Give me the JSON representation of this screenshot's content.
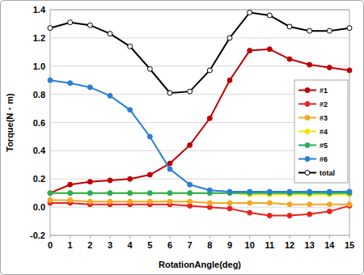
{
  "chart_data": {
    "type": "line",
    "x_label": "RotationAngle(deg)",
    "y_label": "Torque(N・m)",
    "x": [
      0,
      1,
      2,
      3,
      4,
      5,
      6,
      7,
      8,
      9,
      10,
      11,
      12,
      13,
      14,
      15
    ],
    "xlim": [
      0,
      15
    ],
    "xticks": [
      0,
      1,
      2,
      3,
      4,
      5,
      6,
      7,
      8,
      9,
      10,
      11,
      12,
      13,
      14,
      15
    ],
    "ylim": [
      -0.2,
      1.4
    ],
    "yticks": [
      -0.2,
      {
        "value": 0,
        "label": "0.0"
      },
      0.2,
      0.4,
      0.6,
      0.8,
      {
        "value": 1,
        "label": "1.0"
      },
      1.2,
      1.4
    ],
    "grid": true,
    "legend": "right",
    "marker": "circle",
    "series": [
      {
        "name": "#1",
        "color": "#c00000",
        "values": [
          0.1,
          0.16,
          0.18,
          0.19,
          0.2,
          0.23,
          0.31,
          0.44,
          0.63,
          0.9,
          1.11,
          1.12,
          1.05,
          1.01,
          0.99,
          0.97
        ]
      },
      {
        "name": "#2",
        "color": "#e8231f",
        "values": [
          0.03,
          0.03,
          0.02,
          0.02,
          0.02,
          0.02,
          0.02,
          0.01,
          0.0,
          -0.01,
          -0.04,
          -0.06,
          -0.06,
          -0.05,
          -0.03,
          0.01
        ]
      },
      {
        "name": "#3",
        "color": "#f5a623",
        "values": [
          0.05,
          0.05,
          0.04,
          0.04,
          0.04,
          0.04,
          0.04,
          0.04,
          0.03,
          0.03,
          0.03,
          0.03,
          0.02,
          0.02,
          0.02,
          0.02
        ]
      },
      {
        "name": "#4",
        "color": "#f2e600",
        "values": [
          0.1,
          0.1,
          0.1,
          0.1,
          0.1,
          0.1,
          0.1,
          0.1,
          0.1,
          0.1,
          0.09,
          0.09,
          0.09,
          0.09,
          0.09,
          0.09
        ]
      },
      {
        "name": "#5",
        "color": "#27ae60",
        "values": [
          0.1,
          0.1,
          0.1,
          0.1,
          0.1,
          0.1,
          0.1,
          0.1,
          0.1,
          0.1,
          0.1,
          0.1,
          0.1,
          0.1,
          0.1,
          0.1
        ]
      },
      {
        "name": "#6",
        "color": "#2a7fd4",
        "values": [
          0.9,
          0.88,
          0.85,
          0.79,
          0.69,
          0.5,
          0.27,
          0.16,
          0.12,
          0.11,
          0.11,
          0.11,
          0.11,
          0.11,
          0.11,
          0.11
        ]
      },
      {
        "name": "total",
        "color": "#000000",
        "values": [
          1.27,
          1.31,
          1.29,
          1.23,
          1.14,
          0.98,
          0.81,
          0.82,
          0.97,
          1.2,
          1.38,
          1.36,
          1.28,
          1.25,
          1.25,
          1.27
        ]
      }
    ]
  }
}
